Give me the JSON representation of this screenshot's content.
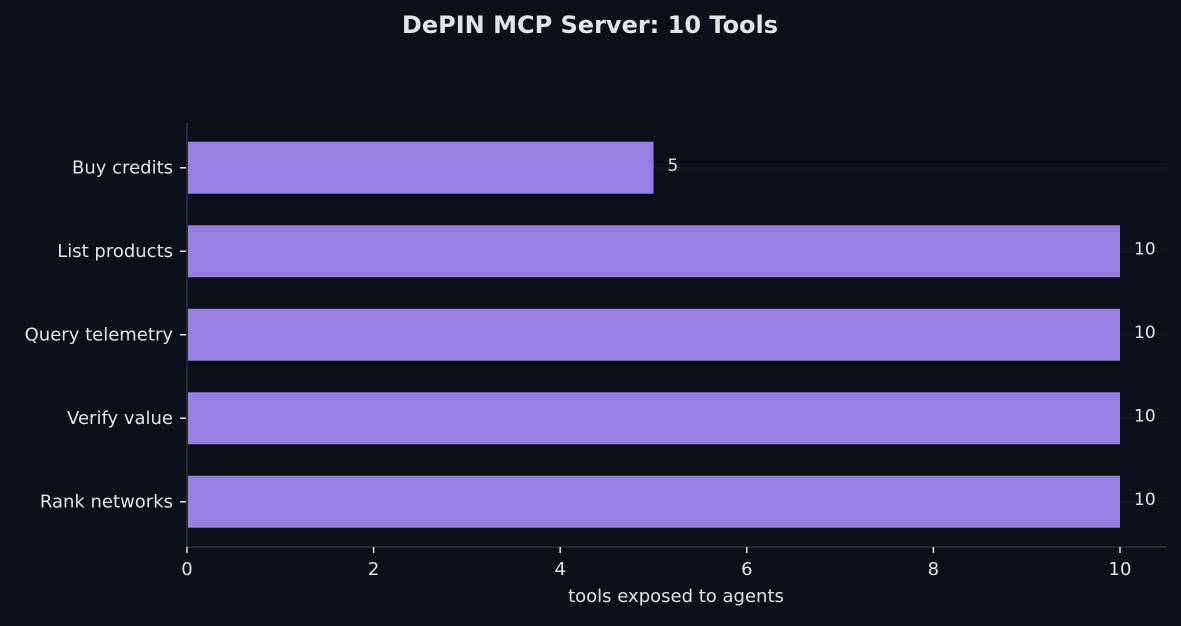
{
  "chart_data": {
    "type": "bar",
    "orientation": "horizontal",
    "title": "DePIN MCP Server: 10 Tools",
    "xlabel": "tools exposed to agents",
    "ylabel": "",
    "categories": [
      "Buy credits",
      "List products",
      "Query telemetry",
      "Verify value",
      "Rank networks"
    ],
    "values": [
      5,
      10,
      10,
      10,
      10
    ],
    "data_labels": [
      "5",
      "10",
      "10",
      "10",
      "10"
    ],
    "xlim": [
      0,
      10.5
    ],
    "xticks": [
      0,
      2,
      4,
      6,
      8,
      10
    ],
    "grid": "horizontal gridlines on",
    "legend": "none",
    "colors": {
      "background": "#0b0f1a",
      "bar": "#9580e2",
      "text": "#e2e4ea",
      "axis": "#2a3142",
      "grid": "#171c28"
    }
  }
}
